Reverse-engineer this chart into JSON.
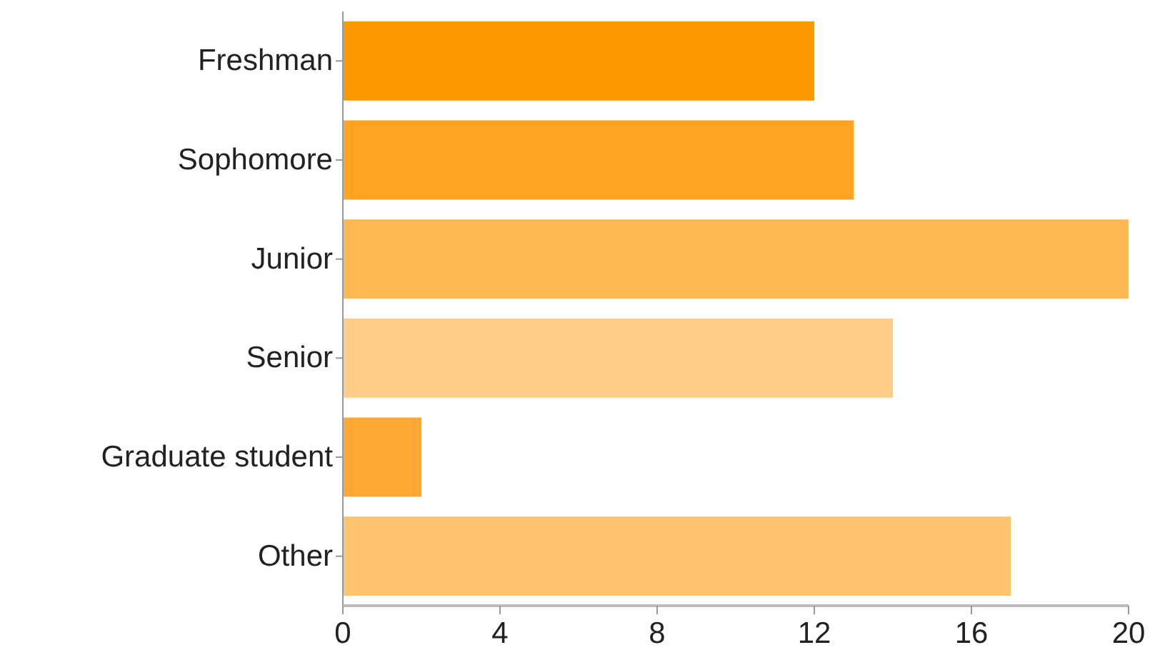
{
  "chart_data": {
    "type": "bar",
    "orientation": "horizontal",
    "categories": [
      "Freshman",
      "Sophomore",
      "Junior",
      "Senior",
      "Graduate student",
      "Other"
    ],
    "values": [
      12,
      13,
      20,
      14,
      2,
      17
    ],
    "colors": [
      "#ff9900",
      "#ffa422",
      "#ffb852",
      "#ffcd88",
      "#ffa833",
      "#ffc46e"
    ],
    "xlim": [
      0,
      20
    ],
    "xticks": [
      0,
      4,
      8,
      12,
      16,
      20
    ]
  }
}
